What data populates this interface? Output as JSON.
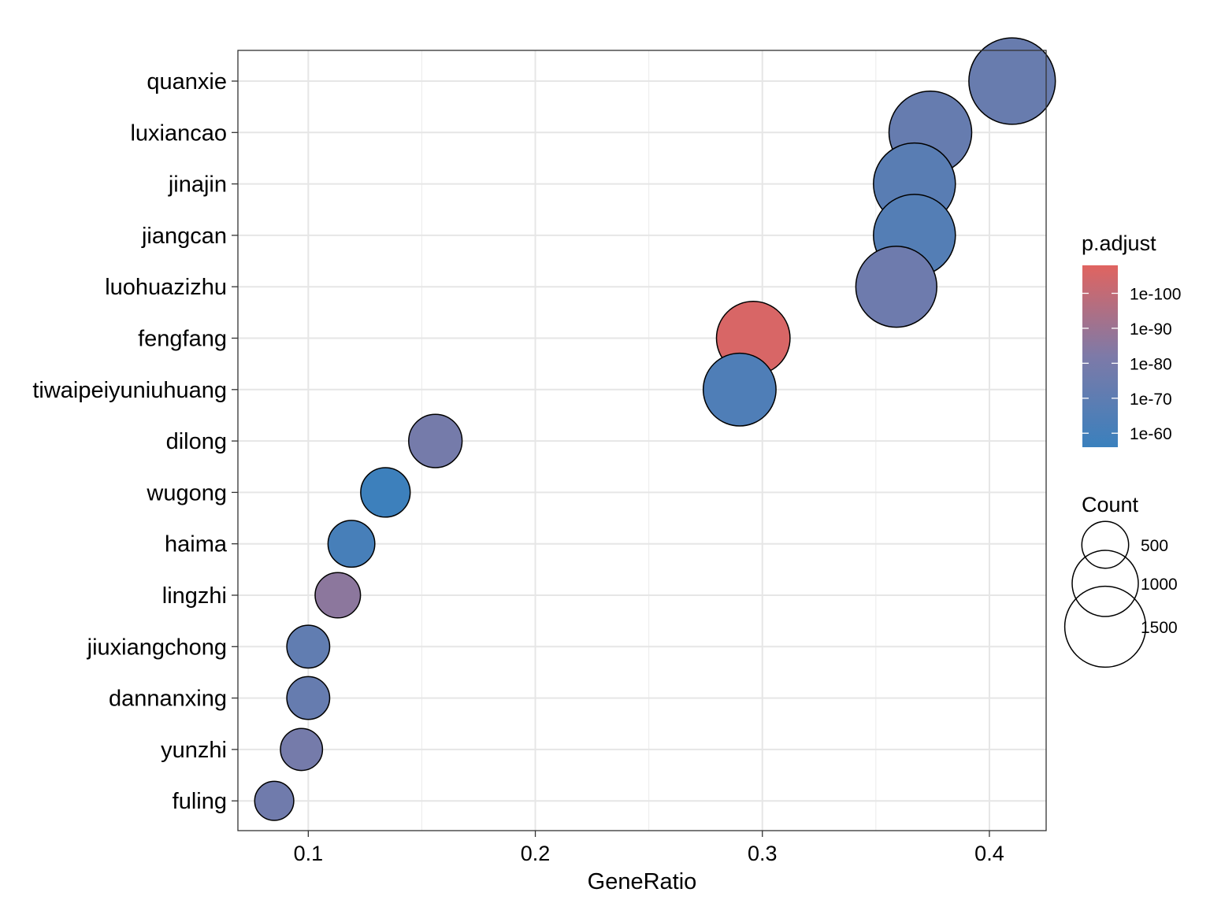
{
  "chart_data": {
    "type": "scatter",
    "title": "",
    "xlabel": "GeneRatio",
    "ylabel": "",
    "xlim": [
      0.069,
      0.425
    ],
    "xticks": [
      0.1,
      0.2,
      0.3,
      0.4
    ],
    "xtick_labels": [
      "0.1",
      "0.2",
      "0.3",
      "0.4"
    ],
    "grid": true,
    "categories": [
      "quanxie",
      "luxiancao",
      "jinajin",
      "jiangcan",
      "luohuazizhu",
      "fengfang",
      "tiwaipeiyuniuhuang",
      "dilong",
      "wugong",
      "haima",
      "lingzhi",
      "jiuxiangchong",
      "dannanxing",
      "yunzhi",
      "fuling"
    ],
    "gene_ratio": [
      0.41,
      0.374,
      0.367,
      0.367,
      0.359,
      0.296,
      0.29,
      0.156,
      0.134,
      0.119,
      0.113,
      0.1,
      0.1,
      0.097,
      0.085
    ],
    "count": [
      1710,
      1560,
      1530,
      1530,
      1500,
      1235,
      1210,
      650,
      560,
      500,
      470,
      420,
      420,
      405,
      350
    ],
    "p_adjust_log10": [
      -74,
      -73,
      -68,
      -66,
      -76,
      -106,
      -64,
      -79,
      -57,
      -61,
      -86,
      -71,
      -73,
      -79,
      -77
    ],
    "legend": {
      "color": {
        "title": "p.adjust",
        "labels": [
          "1e-100",
          "1e-90",
          "1e-80",
          "1e-70",
          "1e-60"
        ],
        "log10_values": [
          -100,
          -90,
          -80,
          -70,
          -60
        ],
        "range_log10": [
          -108,
          -56
        ],
        "colors": [
          "#E06460",
          "#7D7AA8",
          "#3A80BD"
        ]
      },
      "size": {
        "title": "Count",
        "labels": [
          "500",
          "1000",
          "1500"
        ],
        "values": [
          500,
          1000,
          1500
        ]
      },
      "position": "right"
    }
  }
}
